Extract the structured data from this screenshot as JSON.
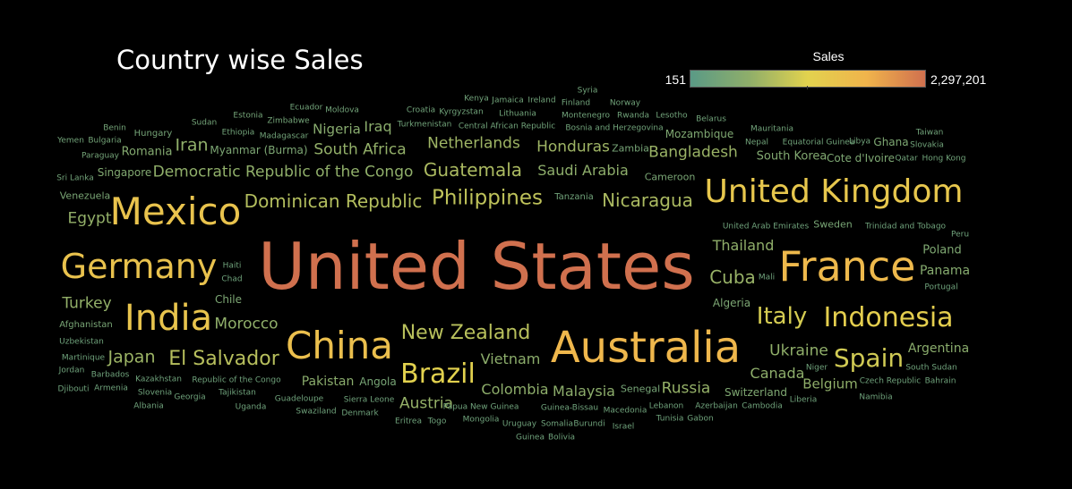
{
  "chart_data": {
    "type": "word-cloud",
    "title": "Country wise Sales",
    "measure": "Sales",
    "color_legend": {
      "title": "Sales",
      "min_label": "151",
      "max_label": "2,297,201",
      "min": 151,
      "max": 2297201,
      "colors": [
        "#5a9a86",
        "#8fae6a",
        "#e2d24e",
        "#f0b44c",
        "#d0704e"
      ]
    },
    "words": [
      {
        "text": "United States",
        "value": 2297201
      },
      {
        "text": "Australia",
        "value": 925236
      },
      {
        "text": "France",
        "value": 858931
      },
      {
        "text": "China",
        "value": 700562
      },
      {
        "text": "Germany",
        "value": 628840
      },
      {
        "text": "Mexico",
        "value": 622590
      },
      {
        "text": "India",
        "value": 589650
      },
      {
        "text": "United Kingdom",
        "value": 528576
      },
      {
        "text": "Indonesia",
        "value": 404887
      },
      {
        "text": "Brazil",
        "value": 361106
      },
      {
        "text": "Italy",
        "value": 289709
      },
      {
        "text": "Philippines",
        "value": 199680
      },
      {
        "text": "Spain",
        "value": 270000
      },
      {
        "text": "New Zealand",
        "value": 180000
      },
      {
        "text": "El Salvador",
        "value": 175000
      },
      {
        "text": "Dominican Republic",
        "value": 165000
      },
      {
        "text": "Nicaragua",
        "value": 140000
      },
      {
        "text": "Guatemala",
        "value": 140000
      },
      {
        "text": "Netherlands",
        "value": 110000
      },
      {
        "text": "Honduras",
        "value": 110000
      },
      {
        "text": "Bangladesh",
        "value": 100000
      },
      {
        "text": "South Africa",
        "value": 85000
      },
      {
        "text": "Japan",
        "value": 105000
      },
      {
        "text": "Cuba",
        "value": 95000
      },
      {
        "text": "Austria",
        "value": 90000
      },
      {
        "text": "Russia",
        "value": 90000
      },
      {
        "text": "Belgium",
        "value": 80000
      },
      {
        "text": "Democratic Republic of the Congo",
        "value": 80000
      },
      {
        "text": "Egypt",
        "value": 85000
      },
      {
        "text": "Turkey",
        "value": 85000
      },
      {
        "text": "Morocco",
        "value": 80000
      },
      {
        "text": "Ukraine",
        "value": 80000
      },
      {
        "text": "Thailand",
        "value": 80000
      },
      {
        "text": "Iran",
        "value": 80000
      },
      {
        "text": "Saudi Arabia",
        "value": 75000
      },
      {
        "text": "Canada",
        "value": 75000
      },
      {
        "text": "Colombia",
        "value": 75000
      },
      {
        "text": "Vietnam",
        "value": 70000
      },
      {
        "text": "Malaysia",
        "value": 70000
      },
      {
        "text": "Pakistan",
        "value": 65000
      },
      {
        "text": "Argentina",
        "value": 65000
      },
      {
        "text": "Iraq",
        "value": 65000
      },
      {
        "text": "Nigeria",
        "value": 60000
      },
      {
        "text": "Panama",
        "value": 55000
      },
      {
        "text": "Romania",
        "value": 50000
      },
      {
        "text": "Singapore",
        "value": 45000
      },
      {
        "text": "South Korea",
        "value": 45000
      },
      {
        "text": "Mozambique",
        "value": 40000
      },
      {
        "text": "Poland",
        "value": 40000
      },
      {
        "text": "Switzerland",
        "value": 40000
      },
      {
        "text": "Ghana",
        "value": 38000
      },
      {
        "text": "Cote d'Ivoire",
        "value": 38000
      },
      {
        "text": "Algeria",
        "value": 36000
      },
      {
        "text": "Chile",
        "value": 36000
      },
      {
        "text": "Myanmar (Burma)",
        "value": 36000
      },
      {
        "text": "Venezuela",
        "value": 32000
      },
      {
        "text": "Cameroon",
        "value": 32000
      },
      {
        "text": "Afghanistan",
        "value": 30000
      },
      {
        "text": "Sweden",
        "value": 30000
      },
      {
        "text": "Angola",
        "value": 28000
      },
      {
        "text": "Senegal",
        "value": 26000
      },
      {
        "text": "Zambia",
        "value": 26000
      },
      {
        "text": "Hungary",
        "value": 24000
      },
      {
        "text": "Paraguay",
        "value": 22000
      },
      {
        "text": "Bulgaria",
        "value": 22000
      },
      {
        "text": "Benin",
        "value": 22000
      },
      {
        "text": "Yemen",
        "value": 20000
      },
      {
        "text": "Sri Lanka",
        "value": 20000
      },
      {
        "text": "Sudan",
        "value": 22000
      },
      {
        "text": "Estonia",
        "value": 22000
      },
      {
        "text": "Zimbabwe",
        "value": 22000
      },
      {
        "text": "Ethiopia",
        "value": 20000
      },
      {
        "text": "Madagascar",
        "value": 20000
      },
      {
        "text": "Ecuador",
        "value": 20000
      },
      {
        "text": "Moldova",
        "value": 20000
      },
      {
        "text": "Croatia",
        "value": 18000
      },
      {
        "text": "Turkmenistan",
        "value": 18000
      },
      {
        "text": "Kenya",
        "value": 18000
      },
      {
        "text": "Kyrgyzstan",
        "value": 18000
      },
      {
        "text": "Jamaica",
        "value": 18000
      },
      {
        "text": "Ireland",
        "value": 18000
      },
      {
        "text": "Lithuania",
        "value": 18000
      },
      {
        "text": "Central African Republic",
        "value": 18000
      },
      {
        "text": "Syria",
        "value": 18000
      },
      {
        "text": "Finland",
        "value": 18000
      },
      {
        "text": "Norway",
        "value": 18000
      },
      {
        "text": "Montenegro",
        "value": 18000
      },
      {
        "text": "Rwanda",
        "value": 18000
      },
      {
        "text": "Bosnia and Herzegovina",
        "value": 18000
      },
      {
        "text": "Lesotho",
        "value": 18000
      },
      {
        "text": "Belarus",
        "value": 18000
      },
      {
        "text": "Mauritania",
        "value": 18000
      },
      {
        "text": "Nepal",
        "value": 18000
      },
      {
        "text": "Equatorial Guinea",
        "value": 18000
      },
      {
        "text": "Libya",
        "value": 18000
      },
      {
        "text": "Taiwan",
        "value": 18000
      },
      {
        "text": "Slovakia",
        "value": 18000
      },
      {
        "text": "Qatar",
        "value": 18000
      },
      {
        "text": "Hong Kong",
        "value": 18000
      },
      {
        "text": "Tanzania",
        "value": 18000
      },
      {
        "text": "United Arab Emirates",
        "value": 16000
      },
      {
        "text": "Trinidad and Tobago",
        "value": 16000
      },
      {
        "text": "Peru",
        "value": 16000
      },
      {
        "text": "Haiti",
        "value": 16000
      },
      {
        "text": "Chad",
        "value": 16000
      },
      {
        "text": "Mali",
        "value": 16000
      },
      {
        "text": "Portugal",
        "value": 16000
      },
      {
        "text": "Uzbekistan",
        "value": 16000
      },
      {
        "text": "Martinique",
        "value": 16000
      },
      {
        "text": "Jordan",
        "value": 16000
      },
      {
        "text": "Barbados",
        "value": 16000
      },
      {
        "text": "Djibouti",
        "value": 16000
      },
      {
        "text": "Armenia",
        "value": 16000
      },
      {
        "text": "Kazakhstan",
        "value": 16000
      },
      {
        "text": "Slovenia",
        "value": 16000
      },
      {
        "text": "Georgia",
        "value": 16000
      },
      {
        "text": "Albania",
        "value": 16000
      },
      {
        "text": "Republic of the Congo",
        "value": 16000
      },
      {
        "text": "Tajikistan",
        "value": 16000
      },
      {
        "text": "Uganda",
        "value": 16000
      },
      {
        "text": "Guadeloupe",
        "value": 16000
      },
      {
        "text": "Swaziland",
        "value": 16000
      },
      {
        "text": "Sierra Leone",
        "value": 16000
      },
      {
        "text": "Denmark",
        "value": 16000
      },
      {
        "text": "Eritrea",
        "value": 16000
      },
      {
        "text": "Togo",
        "value": 16000
      },
      {
        "text": "Papua New Guinea",
        "value": 16000
      },
      {
        "text": "Mongolia",
        "value": 16000
      },
      {
        "text": "Guinea-Bissau",
        "value": 16000
      },
      {
        "text": "Uruguay",
        "value": 16000
      },
      {
        "text": "Somalia",
        "value": 16000
      },
      {
        "text": "Burundi",
        "value": 16000
      },
      {
        "text": "Guinea",
        "value": 16000
      },
      {
        "text": "Bolivia",
        "value": 16000
      },
      {
        "text": "Macedonia",
        "value": 16000
      },
      {
        "text": "Israel",
        "value": 16000
      },
      {
        "text": "Lebanon",
        "value": 16000
      },
      {
        "text": "Tunisia",
        "value": 16000
      },
      {
        "text": "Gabon",
        "value": 16000
      },
      {
        "text": "Azerbaijan",
        "value": 16000
      },
      {
        "text": "Cambodia",
        "value": 16000
      },
      {
        "text": "Liberia",
        "value": 16000
      },
      {
        "text": "Niger",
        "value": 16000
      },
      {
        "text": "Namibia",
        "value": 16000
      },
      {
        "text": "Czech Republic",
        "value": 16000
      },
      {
        "text": "Bahrain",
        "value": 16000
      },
      {
        "text": "South Sudan",
        "value": 16000
      }
    ]
  }
}
